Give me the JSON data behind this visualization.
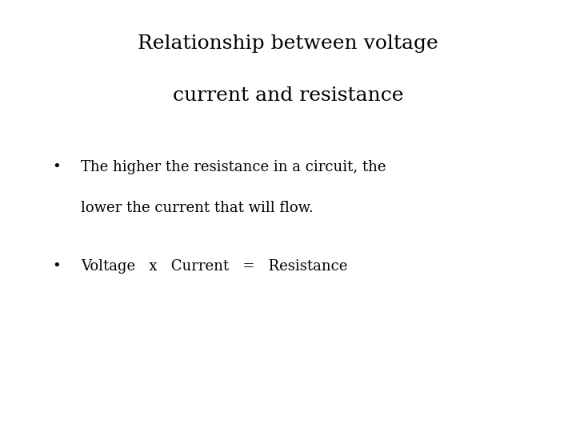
{
  "title_line1": "Relationship between voltage",
  "title_line2": "current and resistance",
  "bullet1_line1": "The higher the resistance in a circuit, the",
  "bullet1_line2": "lower the current that will flow.",
  "bullet2": "Voltage   x   Current   =   Resistance",
  "background_color": "#ffffff",
  "text_color": "#000000",
  "title_fontsize": 18,
  "body_fontsize": 13,
  "font_family": "DejaVu Serif"
}
